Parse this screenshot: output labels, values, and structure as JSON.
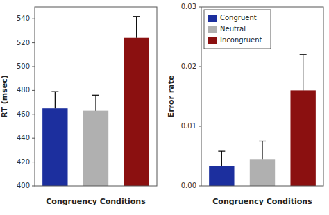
{
  "chart_data": [
    {
      "type": "bar",
      "categories": [
        null,
        null,
        null
      ],
      "values": [
        465,
        463,
        524
      ],
      "errors": [
        14,
        13,
        18
      ],
      "colors": [
        "#1c2f9e",
        "#b0b0b0",
        "#8b1010"
      ],
      "x_label": "Congruency Conditions",
      "y_label": "RT (msec)",
      "ylim": [
        400,
        550
      ],
      "yticks": [
        400,
        420,
        440,
        460,
        480,
        500,
        520,
        540
      ],
      "tick_labels": "y"
    },
    {
      "type": "bar",
      "categories": [
        "Congruent",
        "Neutral",
        "Incongruent"
      ],
      "values": [
        0.0033,
        0.0045,
        0.016
      ],
      "errors": [
        0.0025,
        0.003,
        0.006
      ],
      "colors": [
        "#1c2f9e",
        "#b0b0b0",
        "#8b1010"
      ],
      "x_label": "Congruency Conditions",
      "y_label": "Error rate",
      "ylim": [
        0,
        0.03
      ],
      "yticks": [
        {
          "value": 0,
          "label": "0.00"
        },
        {
          "value": 0.01,
          "label": "0.01"
        },
        {
          "value": 0.02,
          "label": "0.02"
        },
        {
          "value": 0.03,
          "label": "0.03"
        }
      ],
      "tick_labels": "y",
      "legend": "upper left"
    }
  ]
}
